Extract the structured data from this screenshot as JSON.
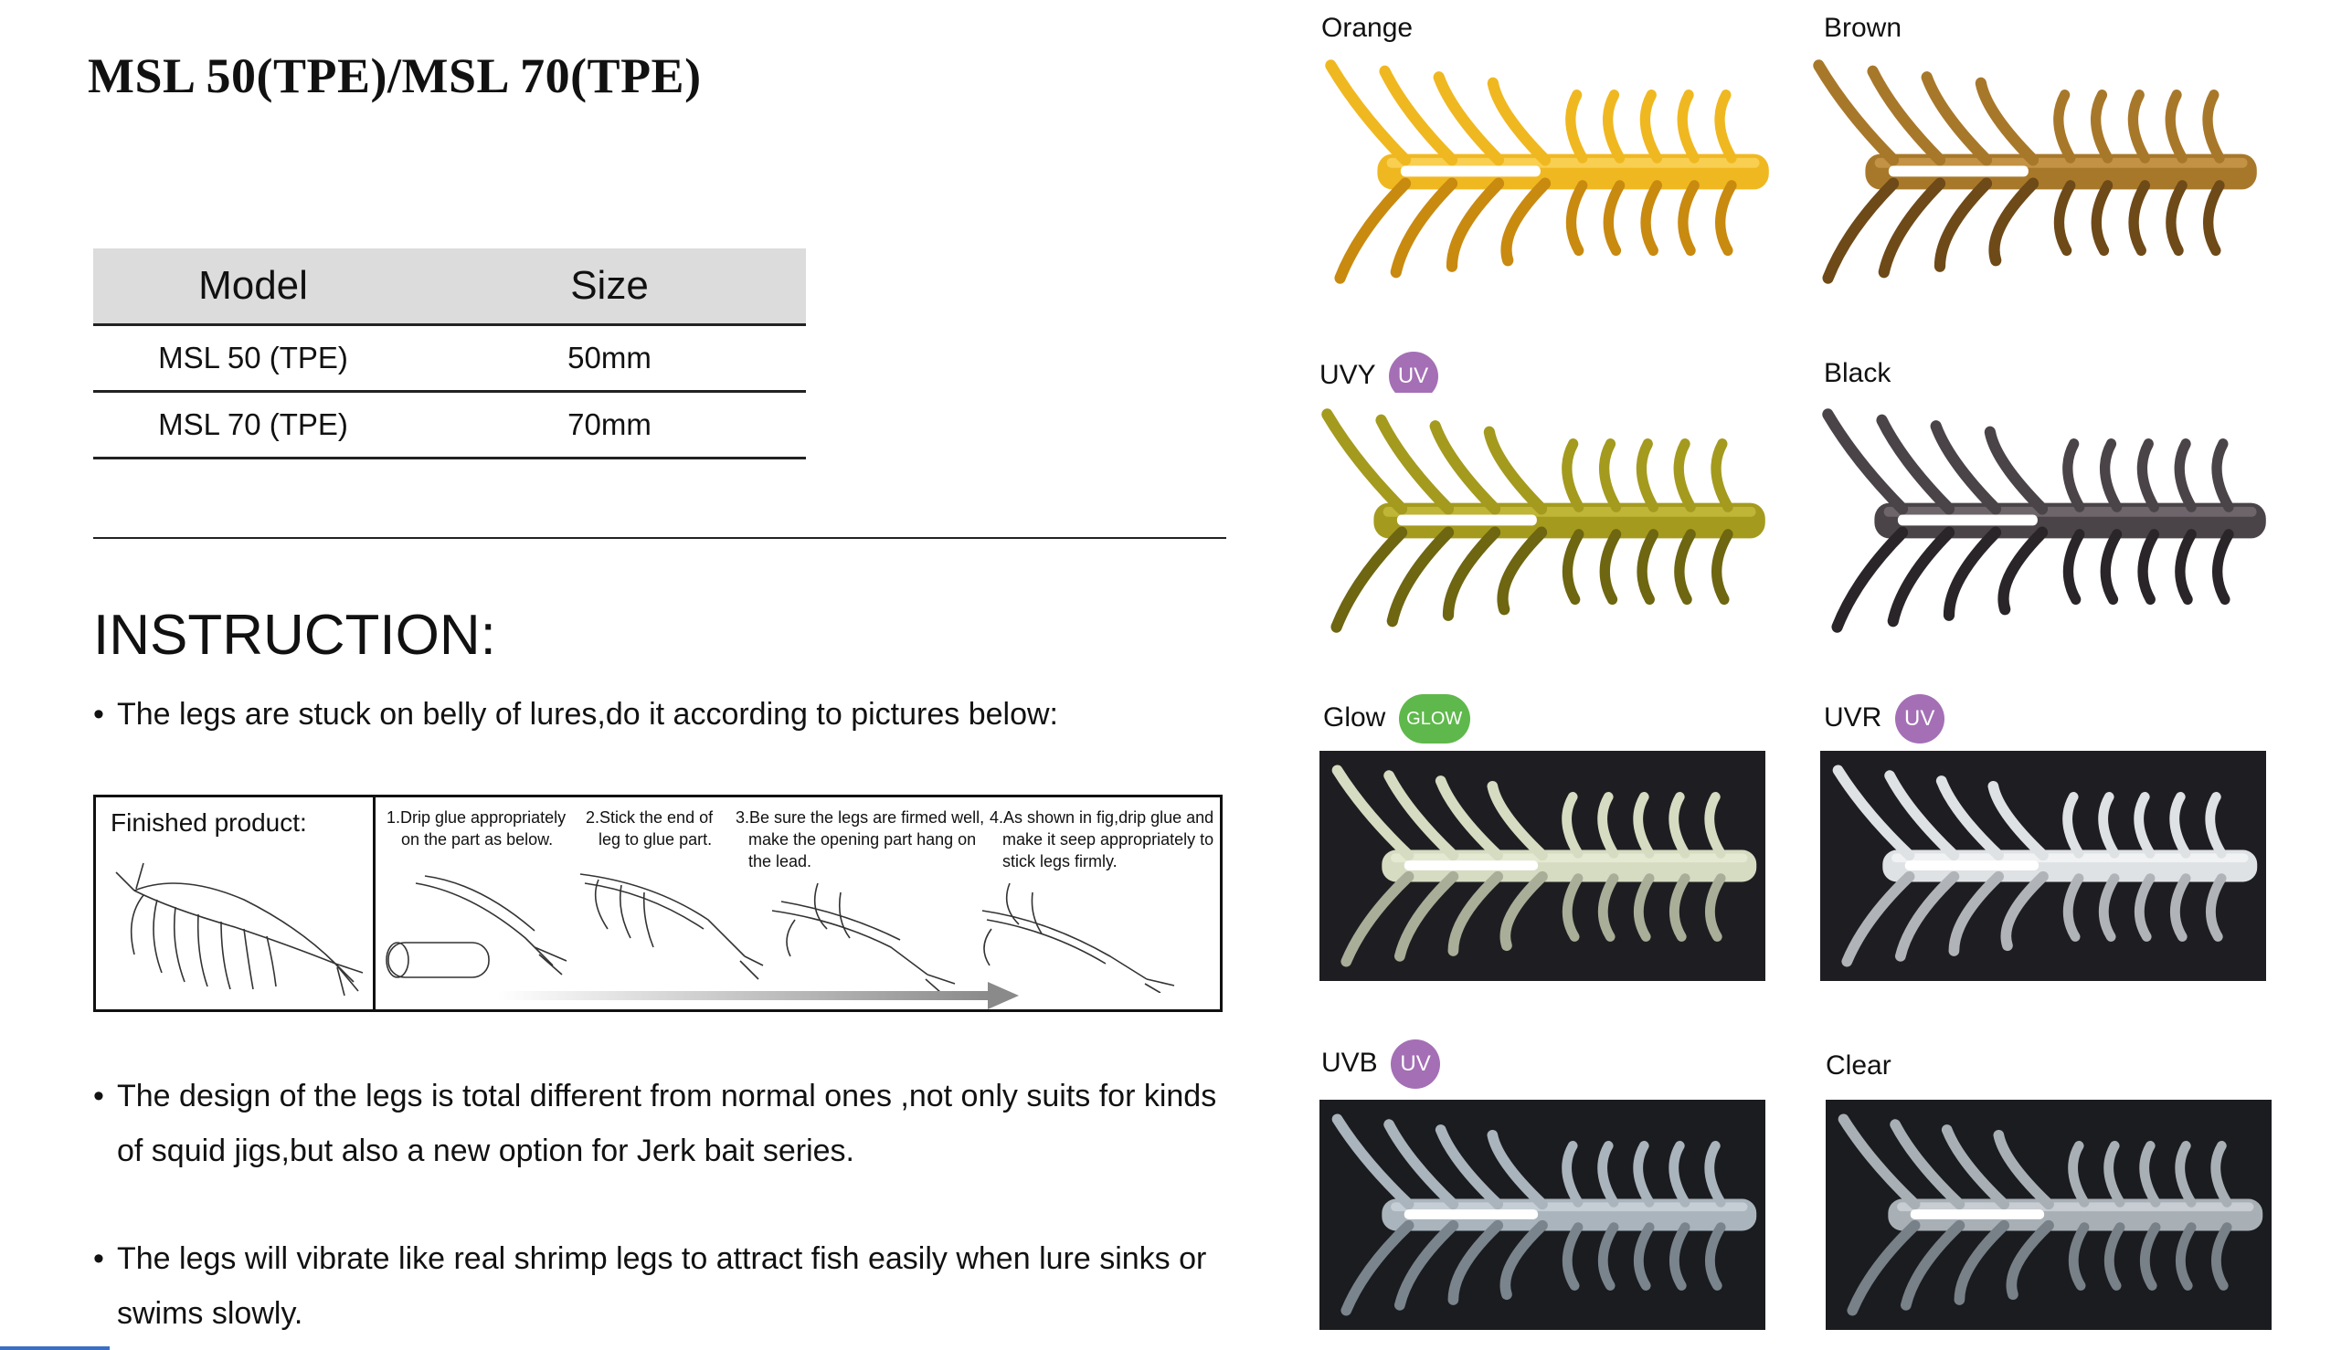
{
  "title": "MSL 50(TPE)/MSL 70(TPE)",
  "spec_table": {
    "headers": {
      "model": "Model",
      "size": "Size"
    },
    "rows": [
      {
        "model": "MSL 50 (TPE)",
        "size": "50mm"
      },
      {
        "model": "MSL 70 (TPE)",
        "size": "70mm"
      }
    ]
  },
  "instruction": {
    "heading": "INSTRUCTION:",
    "bullet_char": "•",
    "bullets": [
      "The legs are stuck on belly of lures,do it according to pictures below:",
      "The design of the legs is total different from normal ones ,not only suits for kinds of squid jigs,but also a new option for Jerk bait series.",
      "The legs will vibrate like real shrimp legs to attract fish easily when lure sinks or swims slowly."
    ],
    "finished_label": "Finished product:",
    "steps": [
      {
        "l1": "1.Drip glue appropriately",
        "l2": "on the part as below.",
        "l3": ""
      },
      {
        "l1": "2.Stick the end of",
        "l2": "leg to glue part.",
        "l3": ""
      },
      {
        "l1": "3.Be sure the legs are firmed well,",
        "l2": "make the opening part hang on",
        "l3": "the lead."
      },
      {
        "l1": "4.As shown in fig,drip glue and",
        "l2": "make it seep appropriately to",
        "l3": "stick legs firmly."
      }
    ]
  },
  "variants": [
    {
      "name": "Orange",
      "badge": "",
      "badge_type": "",
      "bg": "#ffffff",
      "color": "#f0b820",
      "highlight": "#ffe27a",
      "shade": "#c98a10"
    },
    {
      "name": "Brown",
      "badge": "",
      "badge_type": "",
      "bg": "#ffffff",
      "color": "#a8782a",
      "highlight": "#d8a85a",
      "shade": "#6e4a18"
    },
    {
      "name": "UVY",
      "badge": "UV",
      "badge_type": "uv",
      "bg": "#ffffff",
      "color": "#a49a1e",
      "highlight": "#d6cc4a",
      "shade": "#6e6610"
    },
    {
      "name": "Black",
      "badge": "",
      "badge_type": "",
      "bg": "#ffffff",
      "color": "#4a4448",
      "highlight": "#8a8286",
      "shade": "#2a2528"
    },
    {
      "name": "Glow",
      "badge": "GLOW",
      "badge_type": "glow",
      "bg": "#1e1e22",
      "color": "#d6dcc2",
      "highlight": "#f0f4e0",
      "shade": "#a8ae98"
    },
    {
      "name": "UVR",
      "badge": "UV",
      "badge_type": "uv",
      "bg": "#1e1e22",
      "color": "#dfe2e4",
      "highlight": "#ffffff",
      "shade": "#b0b4b8"
    },
    {
      "name": "UVB",
      "badge": "UV",
      "badge_type": "uv",
      "bg": "#1a1c20",
      "color": "#aab4bc",
      "highlight": "#dde4ea",
      "shade": "#7a848c"
    },
    {
      "name": "Clear",
      "badge": "",
      "badge_type": "",
      "bg": "#1a1c20",
      "color": "#a8b0b6",
      "highlight": "#e0e6ea",
      "shade": "#788088"
    }
  ]
}
